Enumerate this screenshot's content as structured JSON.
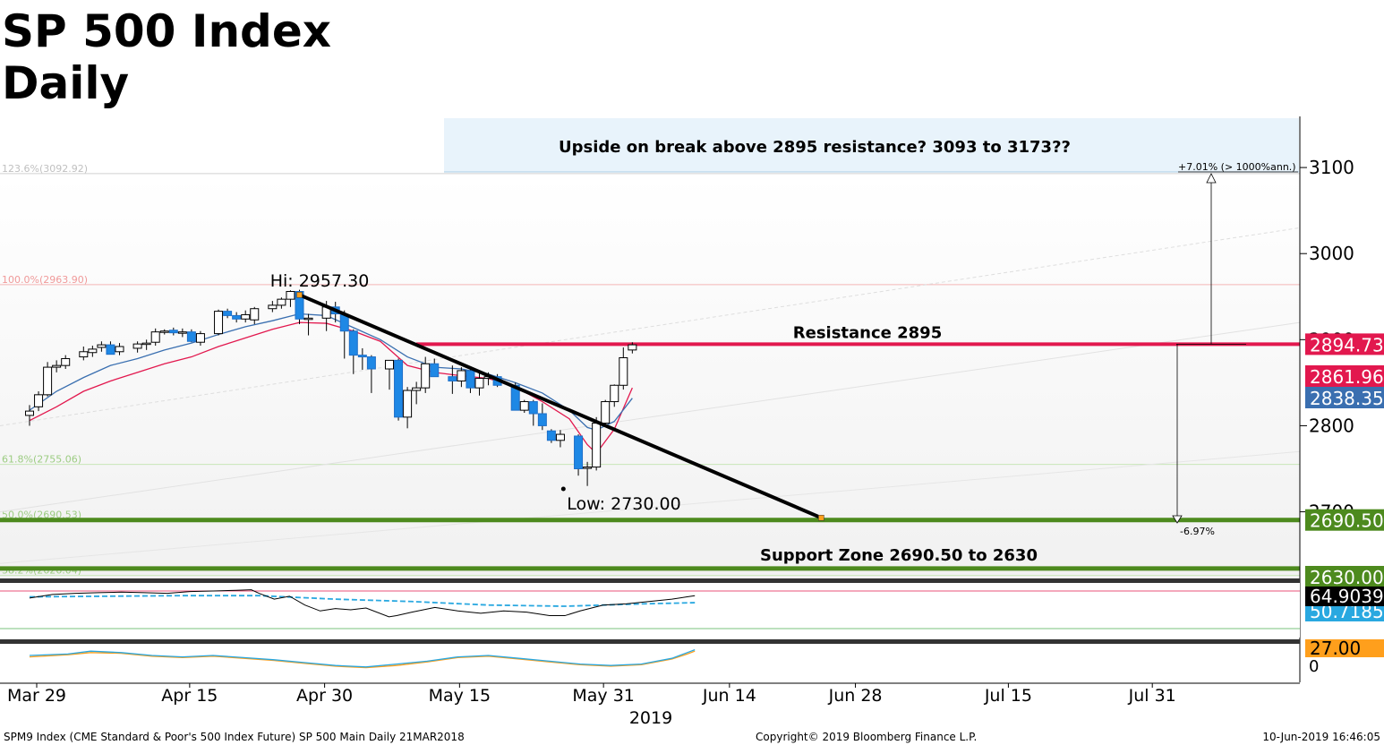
{
  "title": {
    "line1": "SP 500 Index",
    "line2": "Daily"
  },
  "chart_data": {
    "type": "candlestick",
    "ylim": [
      2620,
      3160
    ],
    "yticks": [
      2700,
      2800,
      2900,
      3000,
      3100
    ],
    "ytick_labels": [
      "2700",
      "2800",
      "2900",
      "3000",
      "3100"
    ],
    "x_ticks": [
      {
        "day": 0,
        "label": "Mar 29"
      },
      {
        "day": 17,
        "label": "Apr 15"
      },
      {
        "day": 32,
        "label": "Apr 30"
      },
      {
        "day": 47,
        "label": "May 15"
      },
      {
        "day": 63,
        "label": "May 31"
      },
      {
        "day": 77,
        "label": "Jun 14"
      },
      {
        "day": 91,
        "label": "Jun 28"
      },
      {
        "day": 108,
        "label": "Jul 15"
      },
      {
        "day": 124,
        "label": "Jul 31"
      }
    ],
    "year_label": "2019",
    "candles": [
      {
        "day": 0,
        "o": 2812,
        "h": 2824,
        "l": 2800,
        "c": 2817
      },
      {
        "day": 1,
        "o": 2822,
        "h": 2840,
        "l": 2817,
        "c": 2836
      },
      {
        "day": 2,
        "o": 2836,
        "h": 2874,
        "l": 2834,
        "c": 2868
      },
      {
        "day": 3,
        "o": 2868,
        "h": 2876,
        "l": 2862,
        "c": 2870
      },
      {
        "day": 4,
        "o": 2870,
        "h": 2882,
        "l": 2866,
        "c": 2878
      },
      {
        "day": 6,
        "o": 2880,
        "h": 2892,
        "l": 2876,
        "c": 2886
      },
      {
        "day": 7,
        "o": 2885,
        "h": 2893,
        "l": 2880,
        "c": 2889
      },
      {
        "day": 8,
        "o": 2891,
        "h": 2898,
        "l": 2886,
        "c": 2894
      },
      {
        "day": 9,
        "o": 2894,
        "h": 2898,
        "l": 2883,
        "c": 2883
      },
      {
        "day": 10,
        "o": 2886,
        "h": 2896,
        "l": 2882,
        "c": 2892
      },
      {
        "day": 12,
        "o": 2890,
        "h": 2898,
        "l": 2885,
        "c": 2895
      },
      {
        "day": 13,
        "o": 2895,
        "h": 2900,
        "l": 2888,
        "c": 2896
      },
      {
        "day": 14,
        "o": 2897,
        "h": 2913,
        "l": 2893,
        "c": 2909
      },
      {
        "day": 15,
        "o": 2909,
        "h": 2912,
        "l": 2906,
        "c": 2910
      },
      {
        "day": 16,
        "o": 2911,
        "h": 2914,
        "l": 2905,
        "c": 2908
      },
      {
        "day": 17,
        "o": 2908,
        "h": 2913,
        "l": 2903,
        "c": 2909
      },
      {
        "day": 18,
        "o": 2909,
        "h": 2912,
        "l": 2897,
        "c": 2898
      },
      {
        "day": 19,
        "o": 2897,
        "h": 2910,
        "l": 2893,
        "c": 2907
      },
      {
        "day": 21,
        "o": 2907,
        "h": 2935,
        "l": 2905,
        "c": 2933
      },
      {
        "day": 22,
        "o": 2933,
        "h": 2936,
        "l": 2925,
        "c": 2928
      },
      {
        "day": 23,
        "o": 2928,
        "h": 2932,
        "l": 2920,
        "c": 2924
      },
      {
        "day": 24,
        "o": 2924,
        "h": 2934,
        "l": 2920,
        "c": 2929
      },
      {
        "day": 25,
        "o": 2923,
        "h": 2938,
        "l": 2918,
        "c": 2936
      },
      {
        "day": 27,
        "o": 2936,
        "h": 2945,
        "l": 2932,
        "c": 2940
      },
      {
        "day": 28,
        "o": 2940,
        "h": 2949,
        "l": 2936,
        "c": 2947
      },
      {
        "day": 29,
        "o": 2947,
        "h": 2957.3,
        "l": 2938,
        "c": 2956
      },
      {
        "day": 30,
        "o": 2956,
        "h": 2958,
        "l": 2918,
        "c": 2924
      },
      {
        "day": 31,
        "o": 2924,
        "h": 2930,
        "l": 2905,
        "c": 2925
      },
      {
        "day": 33,
        "o": 2925,
        "h": 2945,
        "l": 2910,
        "c": 2938
      },
      {
        "day": 34,
        "o": 2938,
        "h": 2944,
        "l": 2920,
        "c": 2930
      },
      {
        "day": 35,
        "o": 2929,
        "h": 2934,
        "l": 2878,
        "c": 2910
      },
      {
        "day": 36,
        "o": 2910,
        "h": 2912,
        "l": 2860,
        "c": 2882
      },
      {
        "day": 37,
        "o": 2882,
        "h": 2890,
        "l": 2865,
        "c": 2880
      },
      {
        "day": 38,
        "o": 2880,
        "h": 2882,
        "l": 2838,
        "c": 2866
      },
      {
        "day": 40,
        "o": 2866,
        "h": 2876,
        "l": 2842,
        "c": 2876
      },
      {
        "day": 41,
        "o": 2876,
        "h": 2878,
        "l": 2806,
        "c": 2810
      },
      {
        "day": 42,
        "o": 2810,
        "h": 2845,
        "l": 2797,
        "c": 2841
      },
      {
        "day": 43,
        "o": 2841,
        "h": 2851,
        "l": 2825,
        "c": 2844
      },
      {
        "day": 44,
        "o": 2844,
        "h": 2880,
        "l": 2838,
        "c": 2872
      },
      {
        "day": 45,
        "o": 2872,
        "h": 2878,
        "l": 2858,
        "c": 2857
      },
      {
        "day": 47,
        "o": 2857,
        "h": 2870,
        "l": 2837,
        "c": 2852
      },
      {
        "day": 48,
        "o": 2852,
        "h": 2868,
        "l": 2845,
        "c": 2864
      },
      {
        "day": 49,
        "o": 2864,
        "h": 2866,
        "l": 2838,
        "c": 2844
      },
      {
        "day": 50,
        "o": 2844,
        "h": 2862,
        "l": 2835,
        "c": 2855
      },
      {
        "day": 51,
        "o": 2855,
        "h": 2862,
        "l": 2847,
        "c": 2857
      },
      {
        "day": 52,
        "o": 2857,
        "h": 2860,
        "l": 2845,
        "c": 2847
      },
      {
        "day": 54,
        "o": 2847,
        "h": 2850,
        "l": 2818,
        "c": 2818
      },
      {
        "day": 55,
        "o": 2818,
        "h": 2830,
        "l": 2815,
        "c": 2828
      },
      {
        "day": 56,
        "o": 2828,
        "h": 2830,
        "l": 2800,
        "c": 2814
      },
      {
        "day": 57,
        "o": 2814,
        "h": 2826,
        "l": 2795,
        "c": 2800
      },
      {
        "day": 58,
        "o": 2794,
        "h": 2796,
        "l": 2780,
        "c": 2783
      },
      {
        "day": 59,
        "o": 2783,
        "h": 2795,
        "l": 2775,
        "c": 2790
      },
      {
        "day": 61,
        "o": 2788,
        "h": 2790,
        "l": 2742,
        "c": 2750
      },
      {
        "day": 62,
        "o": 2752,
        "h": 2758,
        "l": 2730,
        "c": 2752
      },
      {
        "day": 63,
        "o": 2752,
        "h": 2810,
        "l": 2748,
        "c": 2803
      },
      {
        "day": 64,
        "o": 2803,
        "h": 2830,
        "l": 2800,
        "c": 2828
      },
      {
        "day": 65,
        "o": 2828,
        "h": 2848,
        "l": 2822,
        "c": 2847
      },
      {
        "day": 66,
        "o": 2847,
        "h": 2891,
        "l": 2842,
        "c": 2879
      },
      {
        "day": 67,
        "o": 2888,
        "h": 2897,
        "l": 2884,
        "c": 2894
      }
    ],
    "ma_fast": {
      "color": "#e2184e",
      "points": [
        [
          0,
          2806
        ],
        [
          3,
          2822
        ],
        [
          6,
          2840
        ],
        [
          9,
          2852
        ],
        [
          12,
          2862
        ],
        [
          15,
          2872
        ],
        [
          18,
          2880
        ],
        [
          21,
          2892
        ],
        [
          24,
          2902
        ],
        [
          27,
          2912
        ],
        [
          30,
          2920
        ],
        [
          33,
          2919
        ],
        [
          36,
          2910
        ],
        [
          39,
          2898
        ],
        [
          42,
          2870
        ],
        [
          45,
          2862
        ],
        [
          48,
          2858
        ],
        [
          51,
          2855
        ],
        [
          54,
          2845
        ],
        [
          57,
          2828
        ],
        [
          60,
          2808
        ],
        [
          62,
          2778
        ],
        [
          63,
          2768
        ],
        [
          65,
          2796
        ],
        [
          67,
          2844
        ]
      ]
    },
    "ma_slow": {
      "color": "#3a6fb0",
      "points": [
        [
          0,
          2818
        ],
        [
          3,
          2840
        ],
        [
          6,
          2856
        ],
        [
          9,
          2870
        ],
        [
          12,
          2878
        ],
        [
          15,
          2888
        ],
        [
          18,
          2896
        ],
        [
          21,
          2906
        ],
        [
          24,
          2915
        ],
        [
          27,
          2922
        ],
        [
          30,
          2930
        ],
        [
          33,
          2928
        ],
        [
          36,
          2914
        ],
        [
          39,
          2900
        ],
        [
          42,
          2880
        ],
        [
          45,
          2868
        ],
        [
          48,
          2866
        ],
        [
          51,
          2860
        ],
        [
          54,
          2850
        ],
        [
          57,
          2838
        ],
        [
          60,
          2818
        ],
        [
          62,
          2798
        ],
        [
          63,
          2795
        ],
        [
          65,
          2805
        ],
        [
          67,
          2832
        ]
      ]
    },
    "trendline": {
      "from": [
        30,
        2952
      ],
      "to": [
        88,
        2693
      ]
    },
    "resistance": {
      "value": 2894.73,
      "label": "Resistance 2895"
    },
    "support_top": {
      "value": 2690.5
    },
    "support_bottom": {
      "value": 2630
    },
    "support_label": "Support Zone 2690.50 to 2630",
    "fib_levels": [
      {
        "value": 3092.92,
        "label": "123.6%(3092.92)"
      },
      {
        "value": 2963.9,
        "label": "100.0%(2963.90)"
      },
      {
        "value": 2755.06,
        "label": "61.8%(2755.06)"
      },
      {
        "value": 2690.53,
        "label": "50.0%(2690.53)"
      },
      {
        "value": 2626.04,
        "label": "38.2%(2626.04)"
      }
    ],
    "hi_label": "Hi: 2957.30",
    "low_label": "Low: 2730.00",
    "annotation": "Upside on break above 2895 resistance? 3093 to 3173??",
    "arrow_up_label": "+7.01% (> 1000%ann.)",
    "arrow_down_label": "-6.97%",
    "price_tags": [
      {
        "value": 2894.73,
        "text": "2894.73",
        "bg": "#e2184e",
        "fg": "#ffffff"
      },
      {
        "value": 2861.96,
        "text": "2861.96",
        "bg": "#e2184e",
        "fg": "#ffffff"
      },
      {
        "value": 2838.35,
        "text": "2838.35",
        "bg": "#3a6fb0",
        "fg": "#ffffff"
      },
      {
        "value": 2690.5,
        "text": "2690.50",
        "bg": "#4d8a1e",
        "fg": "#ffffff"
      },
      {
        "value": 2630,
        "text": "2630.00",
        "bg": "#4d8a1e",
        "fg": "#ffffff"
      }
    ],
    "rsi": {
      "value_label": "64.9039",
      "ma_label": "50.7185",
      "line": [
        [
          0,
          52
        ],
        [
          3,
          58
        ],
        [
          6,
          60
        ],
        [
          9,
          61
        ],
        [
          12,
          62
        ],
        [
          15,
          61
        ],
        [
          18,
          60
        ],
        [
          21,
          63
        ],
        [
          24,
          64
        ],
        [
          27,
          65
        ],
        [
          29,
          66
        ],
        [
          30,
          60
        ],
        [
          32,
          50
        ],
        [
          34,
          55
        ],
        [
          36,
          40
        ],
        [
          38,
          30
        ],
        [
          40,
          34
        ],
        [
          42,
          32
        ],
        [
          44,
          35
        ],
        [
          47,
          20
        ],
        [
          48,
          22
        ],
        [
          50,
          28
        ],
        [
          53,
          36
        ],
        [
          56,
          30
        ],
        [
          59,
          26
        ],
        [
          62,
          30
        ],
        [
          65,
          28
        ],
        [
          68,
          22
        ],
        [
          70,
          22
        ],
        [
          72,
          30
        ],
        [
          75,
          40
        ],
        [
          78,
          42
        ],
        [
          81,
          46
        ],
        [
          84,
          50
        ],
        [
          86,
          54
        ],
        [
          87,
          56
        ]
      ],
      "ma_line": [
        [
          0,
          54
        ],
        [
          10,
          55
        ],
        [
          20,
          56
        ],
        [
          30,
          56
        ],
        [
          40,
          50
        ],
        [
          50,
          46
        ],
        [
          60,
          40
        ],
        [
          70,
          38
        ],
        [
          80,
          42
        ],
        [
          87,
          44
        ]
      ]
    },
    "stoch": {
      "value_label": "27.00",
      "zero_label": "0",
      "k": [
        [
          0,
          30
        ],
        [
          5,
          32
        ],
        [
          8,
          36
        ],
        [
          12,
          34
        ],
        [
          16,
          30
        ],
        [
          20,
          28
        ],
        [
          24,
          30
        ],
        [
          28,
          27
        ],
        [
          32,
          24
        ],
        [
          36,
          20
        ],
        [
          40,
          16
        ],
        [
          44,
          14
        ],
        [
          48,
          18
        ],
        [
          52,
          22
        ],
        [
          56,
          28
        ],
        [
          60,
          30
        ],
        [
          64,
          26
        ],
        [
          68,
          22
        ],
        [
          72,
          18
        ],
        [
          76,
          16
        ],
        [
          80,
          18
        ],
        [
          84,
          26
        ],
        [
          86,
          34
        ],
        [
          87,
          38
        ]
      ],
      "d": [
        [
          0,
          28
        ],
        [
          5,
          31
        ],
        [
          8,
          34
        ],
        [
          12,
          33
        ],
        [
          16,
          29
        ],
        [
          20,
          27
        ],
        [
          24,
          29
        ],
        [
          28,
          26
        ],
        [
          32,
          23
        ],
        [
          36,
          19
        ],
        [
          40,
          15
        ],
        [
          44,
          13
        ],
        [
          48,
          16
        ],
        [
          52,
          21
        ],
        [
          56,
          27
        ],
        [
          60,
          29
        ],
        [
          64,
          25
        ],
        [
          68,
          21
        ],
        [
          72,
          17
        ],
        [
          76,
          15
        ],
        [
          80,
          17
        ],
        [
          84,
          25
        ],
        [
          86,
          32
        ],
        [
          87,
          36
        ]
      ]
    }
  },
  "footer": {
    "left": "SPM9 Index (CME Standard & Poor's 500 Index Future) SP 500 Main  Daily 21MAR2018",
    "center": "Copyright© 2019 Bloomberg Finance L.P.",
    "right": "10-Jun-2019 16:46:05"
  }
}
